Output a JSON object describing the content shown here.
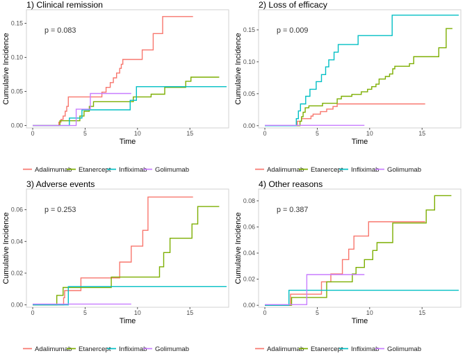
{
  "figure": {
    "xlabel": "Time",
    "ylabel": "Cumulative Incidence",
    "legend_labels": [
      "Adalimumab",
      "Etanercept",
      "Infliximab",
      "Golimumab"
    ],
    "colors": {
      "adalimumab": "#F8766D",
      "etanercept": "#7CAE00",
      "infliximab": "#00BFC4",
      "golimumab": "#C77CFF"
    }
  },
  "chart_data": [
    {
      "type": "line",
      "line_style": "step-after",
      "id": "clinical-remission",
      "title": "1) Clinical remission",
      "p_label": "p = 0.083",
      "p_value": 0.083,
      "xlabel": "Time",
      "ylabel": "Cumulative Incidence",
      "grid": false,
      "legend_position": "bottom",
      "xlim": [
        -0.6,
        18.7
      ],
      "ylim": [
        -0.0035,
        0.17
      ],
      "x_tick_values": [
        0,
        5,
        10,
        15
      ],
      "x_tick_labels": [
        "0",
        "5",
        "10",
        "15"
      ],
      "y_tick_values": [
        0.0,
        0.05,
        0.1,
        0.15
      ],
      "y_tick_labels": [
        "0.00",
        "0.05",
        "0.10",
        "0.15"
      ],
      "series": [
        {
          "name": "Adalimumab",
          "color": "#F8766D",
          "points": [
            [
              0,
              0
            ],
            [
              2.5,
              0.005
            ],
            [
              2.7,
              0.009
            ],
            [
              2.9,
              0.014
            ],
            [
              3.1,
              0.021
            ],
            [
              3.25,
              0.028
            ],
            [
              3.4,
              0.042
            ],
            [
              6.6,
              0.049
            ],
            [
              7.0,
              0.056
            ],
            [
              7.4,
              0.063
            ],
            [
              7.7,
              0.07
            ],
            [
              8.0,
              0.077
            ],
            [
              8.3,
              0.084
            ],
            [
              8.45,
              0.09
            ],
            [
              8.6,
              0.097
            ],
            [
              10.45,
              0.111
            ],
            [
              11.5,
              0.135
            ],
            [
              12.4,
              0.16
            ],
            [
              15.3,
              0.16
            ]
          ]
        },
        {
          "name": "Etanercept",
          "color": "#7CAE00",
          "points": [
            [
              0,
              0
            ],
            [
              2.6,
              0.007
            ],
            [
              4.5,
              0.014
            ],
            [
              4.9,
              0.021
            ],
            [
              5.4,
              0.028
            ],
            [
              5.8,
              0.035
            ],
            [
              9.6,
              0.042
            ],
            [
              11.3,
              0.046
            ],
            [
              12.6,
              0.056
            ],
            [
              14.6,
              0.065
            ],
            [
              15.1,
              0.071
            ],
            [
              17.8,
              0.071
            ]
          ]
        },
        {
          "name": "Infliximab",
          "color": "#00BFC4",
          "points": [
            [
              0,
              0
            ],
            [
              3.5,
              0.011
            ],
            [
              4.7,
              0.023
            ],
            [
              9.3,
              0.037
            ],
            [
              9.9,
              0.057
            ],
            [
              18.5,
              0.057
            ]
          ]
        },
        {
          "name": "Golimumab",
          "color": "#C77CFF",
          "points": [
            [
              0,
              0
            ],
            [
              4.15,
              0.024
            ],
            [
              5.5,
              0.047
            ],
            [
              9.4,
              0.047
            ]
          ]
        }
      ]
    },
    {
      "type": "line",
      "line_style": "step-after",
      "id": "loss-of-efficacy",
      "title": "2) Loss of efficacy",
      "p_label": "p = 0.009",
      "p_value": 0.009,
      "xlabel": "Time",
      "ylabel": "Cumulative Incidence",
      "grid": false,
      "legend_position": "bottom",
      "xlim": [
        -0.6,
        18.7
      ],
      "ylim": [
        -0.0035,
        0.1815
      ],
      "x_tick_values": [
        0,
        5,
        10,
        15
      ],
      "x_tick_labels": [
        "0",
        "5",
        "10",
        "15"
      ],
      "y_tick_values": [
        0.0,
        0.05,
        0.1,
        0.15
      ],
      "y_tick_labels": [
        "0.00",
        "0.05",
        "0.10",
        "0.15"
      ],
      "series": [
        {
          "name": "Adalimumab",
          "color": "#F8766D",
          "points": [
            [
              0,
              0
            ],
            [
              3.1,
              0.007
            ],
            [
              3.5,
              0.011
            ],
            [
              4.4,
              0.015
            ],
            [
              4.6,
              0.018
            ],
            [
              5.3,
              0.022
            ],
            [
              5.9,
              0.026
            ],
            [
              6.5,
              0.03
            ],
            [
              6.9,
              0.034
            ],
            [
              15.3,
              0.034
            ]
          ]
        },
        {
          "name": "Etanercept",
          "color": "#7CAE00",
          "points": [
            [
              0,
              0
            ],
            [
              3.35,
              0.007
            ],
            [
              3.5,
              0.014
            ],
            [
              3.65,
              0.021
            ],
            [
              3.85,
              0.028
            ],
            [
              4.2,
              0.031
            ],
            [
              5.5,
              0.035
            ],
            [
              6.9,
              0.042
            ],
            [
              7.3,
              0.046
            ],
            [
              8.3,
              0.049
            ],
            [
              9.2,
              0.053
            ],
            [
              9.8,
              0.057
            ],
            [
              10.2,
              0.061
            ],
            [
              10.6,
              0.065
            ],
            [
              10.9,
              0.073
            ],
            [
              11.5,
              0.077
            ],
            [
              11.9,
              0.081
            ],
            [
              12.2,
              0.089
            ],
            [
              12.4,
              0.093
            ],
            [
              13.8,
              0.097
            ],
            [
              14.2,
              0.108
            ],
            [
              16.6,
              0.122
            ],
            [
              17.3,
              0.152
            ],
            [
              17.9,
              0.152
            ]
          ]
        },
        {
          "name": "Infliximab",
          "color": "#00BFC4",
          "points": [
            [
              0,
              0
            ],
            [
              3.0,
              0.011
            ],
            [
              3.2,
              0.023
            ],
            [
              3.4,
              0.034
            ],
            [
              3.9,
              0.046
            ],
            [
              4.3,
              0.057
            ],
            [
              4.9,
              0.069
            ],
            [
              5.4,
              0.08
            ],
            [
              5.8,
              0.092
            ],
            [
              6.1,
              0.103
            ],
            [
              6.6,
              0.115
            ],
            [
              7.0,
              0.127
            ],
            [
              8.9,
              0.141
            ],
            [
              12.15,
              0.173
            ],
            [
              18.5,
              0.173
            ]
          ]
        },
        {
          "name": "Golimumab",
          "color": "#C77CFF",
          "points": [
            [
              0,
              0.0005
            ],
            [
              9.5,
              0.0005
            ]
          ]
        }
      ]
    },
    {
      "type": "line",
      "line_style": "step-after",
      "id": "adverse-events",
      "title": "3) Adverse events",
      "p_label": "p = 0.253",
      "p_value": 0.253,
      "xlabel": "Time",
      "ylabel": "Cumulative Incidence",
      "grid": false,
      "legend_position": "bottom",
      "xlim": [
        -0.6,
        18.7
      ],
      "ylim": [
        -0.0015,
        0.073
      ],
      "x_tick_values": [
        0,
        5,
        10,
        15
      ],
      "x_tick_labels": [
        "0",
        "5",
        "10",
        "15"
      ],
      "y_tick_values": [
        0.0,
        0.02,
        0.04,
        0.06
      ],
      "y_tick_labels": [
        "0.00",
        "0.02",
        "0.04",
        "0.06"
      ],
      "series": [
        {
          "name": "Adalimumab",
          "color": "#F8766D",
          "points": [
            [
              0,
              0
            ],
            [
              2.95,
              0.0045
            ],
            [
              3.05,
              0.009
            ],
            [
              4.6,
              0.017
            ],
            [
              8.3,
              0.027
            ],
            [
              9.4,
              0.037
            ],
            [
              10.5,
              0.047
            ],
            [
              11.0,
              0.068
            ],
            [
              15.3,
              0.068
            ]
          ]
        },
        {
          "name": "Etanercept",
          "color": "#7CAE00",
          "points": [
            [
              0,
              0
            ],
            [
              2.3,
              0.006
            ],
            [
              2.9,
              0.011
            ],
            [
              7.5,
              0.0175
            ],
            [
              12.1,
              0.024
            ],
            [
              12.5,
              0.033
            ],
            [
              13.1,
              0.042
            ],
            [
              15.2,
              0.051
            ],
            [
              15.75,
              0.062
            ],
            [
              17.8,
              0.062
            ]
          ]
        },
        {
          "name": "Infliximab",
          "color": "#00BFC4",
          "points": [
            [
              0,
              0
            ],
            [
              3.4,
              0.0115
            ],
            [
              18.5,
              0.0115
            ]
          ]
        },
        {
          "name": "Golimumab",
          "color": "#C77CFF",
          "points": [
            [
              0,
              0.0005
            ],
            [
              9.4,
              0.0005
            ]
          ]
        }
      ]
    },
    {
      "type": "line",
      "line_style": "step-after",
      "id": "other-reasons",
      "title": "4) Other reasons",
      "p_label": "p = 0.387",
      "p_value": 0.387,
      "xlabel": "Time",
      "ylabel": "Cumulative Incidence",
      "grid": false,
      "legend_position": "bottom",
      "xlim": [
        -0.6,
        18.7
      ],
      "ylim": [
        -0.0015,
        0.089
      ],
      "x_tick_values": [
        0,
        5,
        10,
        15
      ],
      "x_tick_labels": [
        "0",
        "5",
        "10",
        "15"
      ],
      "y_tick_values": [
        0.0,
        0.02,
        0.04,
        0.06,
        0.08
      ],
      "y_tick_labels": [
        "0.00",
        "0.02",
        "0.04",
        "0.06",
        "0.08"
      ],
      "series": [
        {
          "name": "Adalimumab",
          "color": "#F8766D",
          "points": [
            [
              0,
              0
            ],
            [
              2.45,
              0.0085
            ],
            [
              5.4,
              0.018
            ],
            [
              6.3,
              0.024
            ],
            [
              7.4,
              0.035
            ],
            [
              8.0,
              0.043
            ],
            [
              8.5,
              0.053
            ],
            [
              9.9,
              0.064
            ],
            [
              15.3,
              0.064
            ]
          ]
        },
        {
          "name": "Etanercept",
          "color": "#7CAE00",
          "points": [
            [
              0,
              0
            ],
            [
              2.55,
              0.006
            ],
            [
              5.9,
              0.018
            ],
            [
              8.35,
              0.024
            ],
            [
              8.7,
              0.029
            ],
            [
              9.5,
              0.035
            ],
            [
              10.3,
              0.042
            ],
            [
              10.7,
              0.048
            ],
            [
              12.2,
              0.063
            ],
            [
              15.4,
              0.073
            ],
            [
              16.2,
              0.084
            ],
            [
              17.8,
              0.084
            ]
          ]
        },
        {
          "name": "Infliximab",
          "color": "#00BFC4",
          "points": [
            [
              0,
              0
            ],
            [
              2.3,
              0.0115
            ],
            [
              18.5,
              0.0115
            ]
          ]
        },
        {
          "name": "Golimumab",
          "color": "#C77CFF",
          "points": [
            [
              0,
              0.0005
            ],
            [
              4.0,
              0.0235
            ],
            [
              9.5,
              0.0235
            ]
          ]
        }
      ]
    }
  ]
}
